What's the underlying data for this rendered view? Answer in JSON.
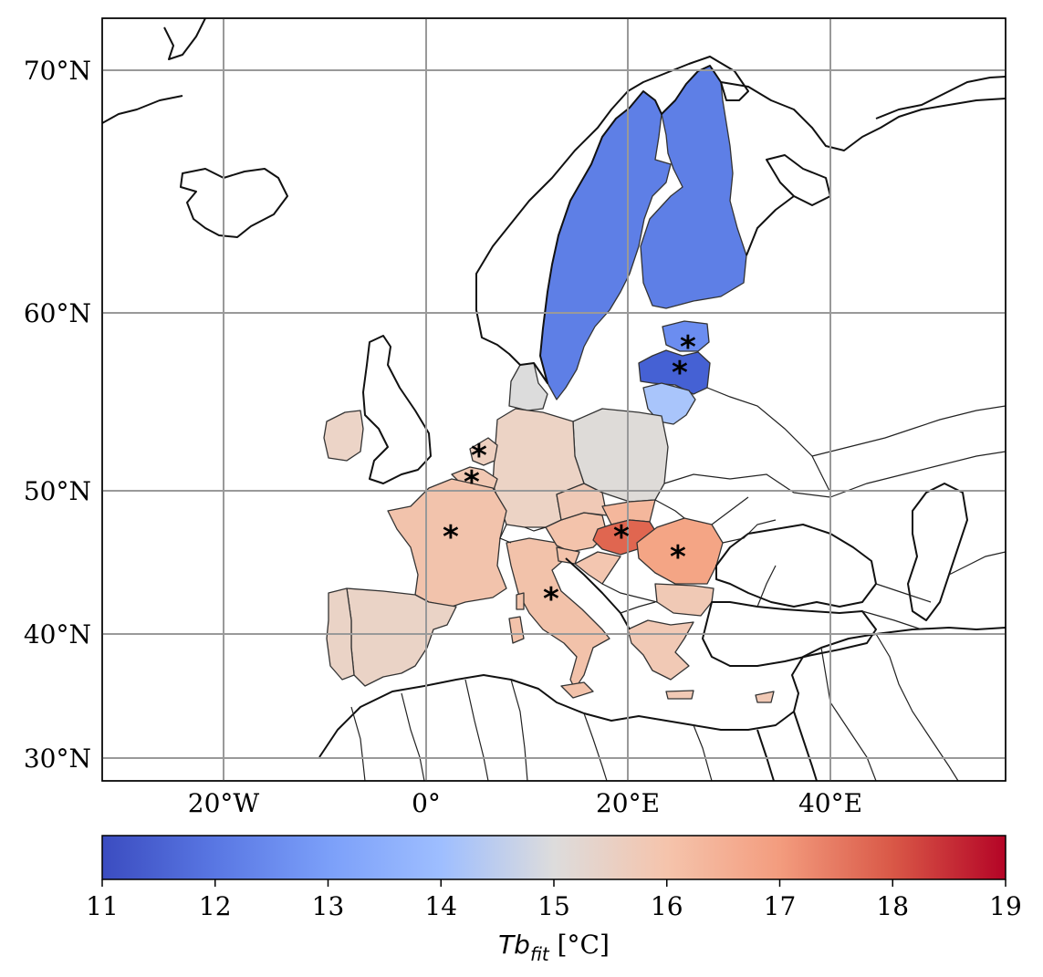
{
  "map": {
    "lat_labels": [
      "70°N",
      "60°N",
      "50°N",
      "40°N",
      "30°N"
    ],
    "lon_labels": [
      "20°W",
      "0°",
      "20°E",
      "40°E"
    ]
  },
  "colorbar": {
    "ticks": [
      "11",
      "12",
      "13",
      "14",
      "15",
      "16",
      "17",
      "18",
      "19"
    ],
    "label_main": "Tb",
    "label_sub": "fit",
    "label_unit": " [°C]",
    "colors": [
      "#3b4cc0",
      "#6788ee",
      "#9abbff",
      "#c9d7f0",
      "#edd1c2",
      "#f7a889",
      "#e26952",
      "#b40426"
    ]
  },
  "regions": [
    {
      "name": "Sweden",
      "color": "#5e7fe6"
    },
    {
      "name": "Finland",
      "color": "#5e7fe6"
    },
    {
      "name": "Estonia",
      "color": "#6b8df0"
    },
    {
      "name": "Latvia",
      "color": "#4561d4"
    },
    {
      "name": "Lithuania",
      "color": "#a9c5fb"
    },
    {
      "name": "Denmark",
      "color": "#dcdcdc"
    },
    {
      "name": "Poland",
      "color": "#dedbd8"
    },
    {
      "name": "Germany",
      "color": "#ecd3c5"
    },
    {
      "name": "Netherlands",
      "color": "#eed0c0"
    },
    {
      "name": "Belgium",
      "color": "#f1c8b3"
    },
    {
      "name": "France",
      "color": "#f2c3ac"
    },
    {
      "name": "Spain",
      "color": "#ead3c6"
    },
    {
      "name": "Portugal",
      "color": "#ead3c6"
    },
    {
      "name": "Ireland",
      "color": "#ecd4c7"
    },
    {
      "name": "Italy",
      "color": "#f2c2aa"
    },
    {
      "name": "Austria",
      "color": "#f3c3ab"
    },
    {
      "name": "Czechia",
      "color": "#f0c9b6"
    },
    {
      "name": "Slovakia",
      "color": "#f4b79c"
    },
    {
      "name": "Hungary",
      "color": "#e06650"
    },
    {
      "name": "Romania",
      "color": "#f4a585"
    },
    {
      "name": "Slovenia",
      "color": "#f3c3ab"
    },
    {
      "name": "Croatia",
      "color": "#f3c6b0"
    },
    {
      "name": "Bulgaria",
      "color": "#f0c9b5"
    },
    {
      "name": "Greece",
      "color": "#f1c9b5"
    }
  ],
  "markers": [
    "*",
    "*",
    "*",
    "*",
    "*",
    "*",
    "*",
    "*"
  ]
}
